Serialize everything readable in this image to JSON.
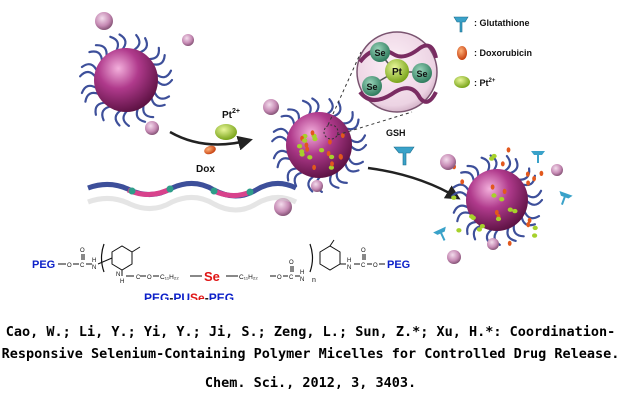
{
  "legend": {
    "glutathione": ": Glutathione",
    "doxorubicin": ": Doxorubicin",
    "platinum": ": Pt",
    "platinum_charge": "2+"
  },
  "reagents": {
    "pt": "Pt",
    "pt_charge": "2+",
    "dox": "Dox",
    "gsh": "GSH"
  },
  "inset": {
    "se_label": "Se",
    "pt_label": "Pt"
  },
  "structure": {
    "peg": "PEG",
    "o": "O",
    "c": "C",
    "h": "H",
    "n": "N",
    "c11h22": "C₁₁H₂₂",
    "se": "Se",
    "subscript_n": "n"
  },
  "polymer_name": {
    "peg_left": "PEG",
    "dash1": "-",
    "pu": "PU",
    "se": "Se",
    "dash2": "-",
    "peg_right": "PEG"
  },
  "colors": {
    "micelle": "#b03a8c",
    "micelle_dark": "#6e1a52",
    "arm": "#3d4f9a",
    "glutathione": "#3aa2c9",
    "doxorubicin": "#e2581d",
    "platinum": "#a6d12b",
    "peg_text": "#0d21c9",
    "se_text": "#e01515"
  },
  "citation": {
    "line1": "Cao, W.; Li, Y.; Yi, Y.; Ji, S.; Zeng, L.; Sun, Z.*; Xu, H.*: Coordination-",
    "line2": "Responsive Selenium-Containing Polymer Micelles for Controlled Drug Release.",
    "line3": "Chem. Sci., 2012, 3, 3403."
  }
}
